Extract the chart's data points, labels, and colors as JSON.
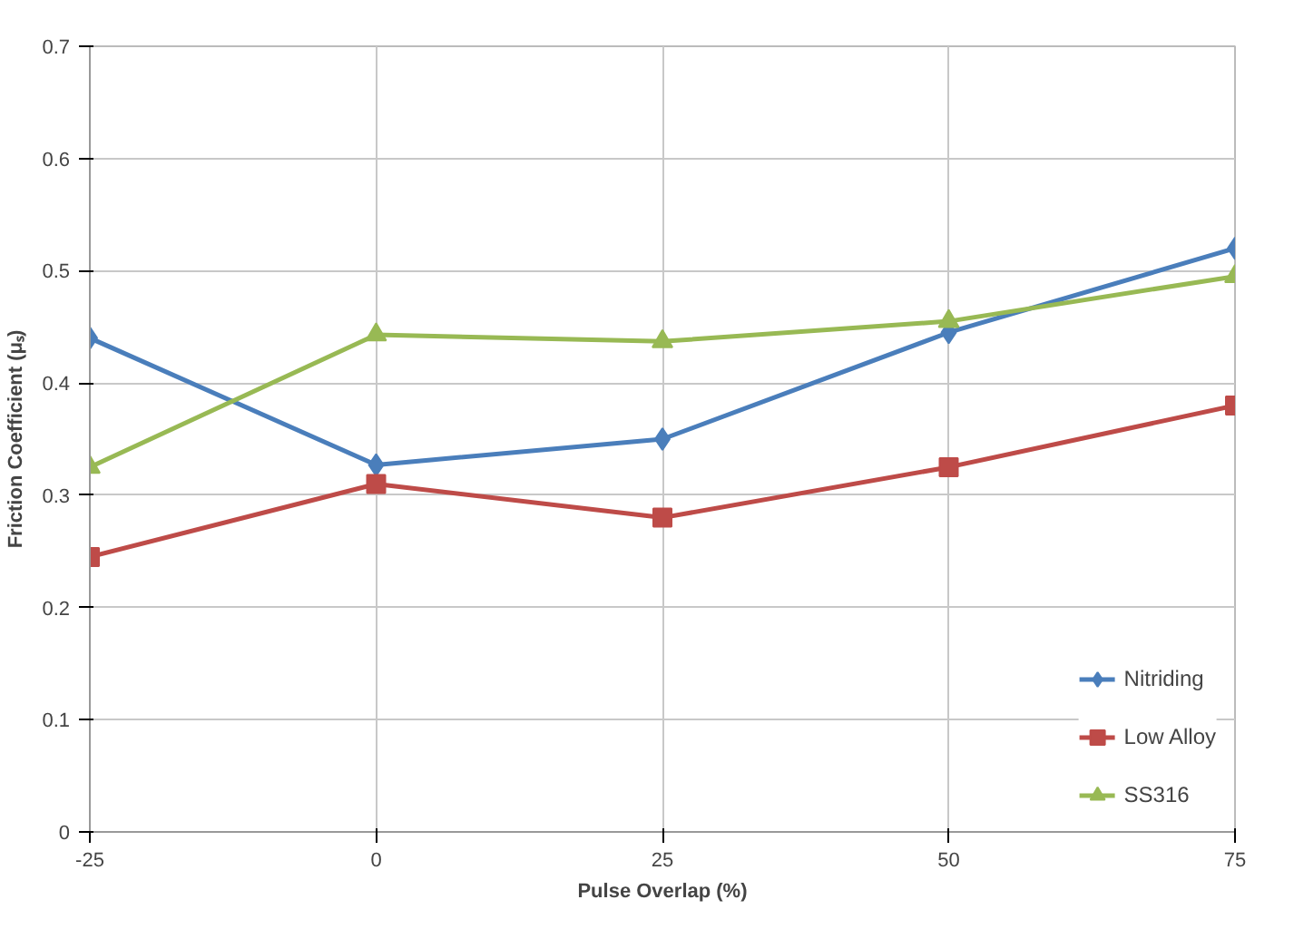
{
  "chart_data": {
    "type": "line",
    "xlabel": "Pulse Overlap (%)",
    "ylabel": "Friction Coefficient (μₛ)",
    "x": [
      -25,
      0,
      25,
      50,
      75
    ],
    "xlim": [
      -25,
      75
    ],
    "xticks": [
      -25,
      0,
      25,
      50,
      75
    ],
    "ylim": [
      0,
      0.7
    ],
    "yticks": [
      0,
      0.1,
      0.2,
      0.3,
      0.4,
      0.5,
      0.6,
      0.7
    ],
    "grid": true,
    "legend": "bottom right",
    "line_style": "solid",
    "series": [
      {
        "name": "Nitriding",
        "color": "#4a7ebb",
        "marker": "diamond",
        "values": [
          0.44,
          0.327,
          0.35,
          0.445,
          0.52
        ]
      },
      {
        "name": "Low Alloy",
        "color": "#be4b48",
        "marker": "square",
        "values": [
          0.245,
          0.31,
          0.28,
          0.325,
          0.38
        ]
      },
      {
        "name": "SS316",
        "color": "#98b954",
        "marker": "triangle",
        "values": [
          0.325,
          0.443,
          0.437,
          0.455,
          0.495
        ]
      }
    ]
  }
}
